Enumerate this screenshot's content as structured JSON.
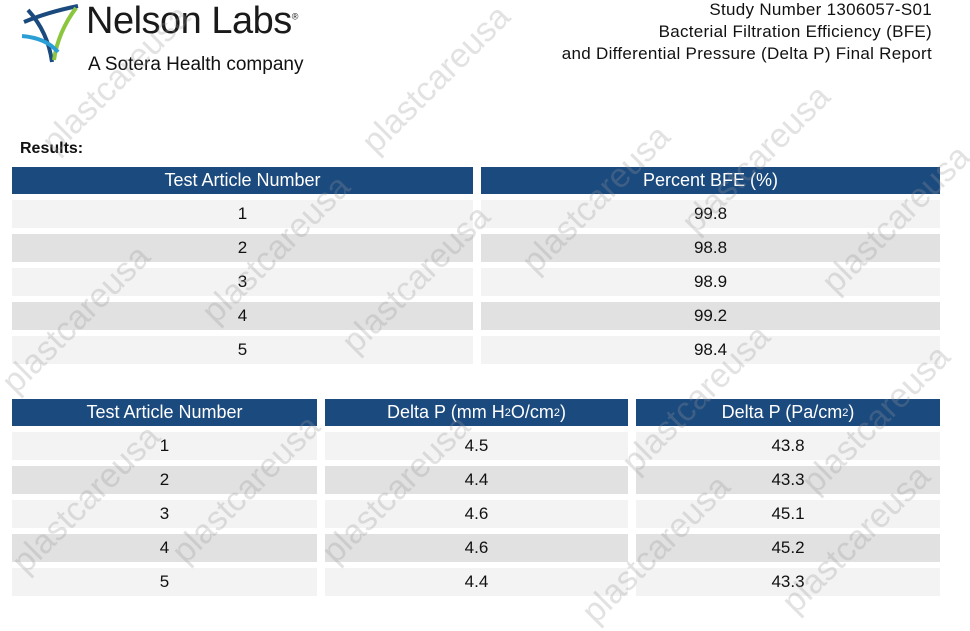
{
  "header": {
    "logo_name": "Nelson Labs",
    "logo_mark": "®",
    "logo_tagline": "A Sotera Health company",
    "study_number": "Study Number 1306057-S01",
    "report_line1": "Bacterial Filtration Efficiency (BFE)",
    "report_line2": "and Differential Pressure (Delta P) Final Report"
  },
  "section_title": "Results:",
  "table_bfe": {
    "columns": [
      "Test Article Number",
      "Percent BFE (%)"
    ],
    "rows": [
      [
        "1",
        "99.8"
      ],
      [
        "2",
        "98.8"
      ],
      [
        "3",
        "98.9"
      ],
      [
        "4",
        "99.2"
      ],
      [
        "5",
        "98.4"
      ]
    ]
  },
  "table_delta_p": {
    "columns": [
      [
        "Test Article Number"
      ],
      [
        "Delta P (mm H",
        "2",
        "O/cm",
        "2",
        ")"
      ],
      [
        "Delta P (Pa/cm",
        "2",
        ")"
      ]
    ],
    "rows": [
      [
        "1",
        "4.5",
        "43.8"
      ],
      [
        "2",
        "4.4",
        "43.3"
      ],
      [
        "3",
        "4.6",
        "45.1"
      ],
      [
        "4",
        "4.6",
        "45.2"
      ],
      [
        "5",
        "4.4",
        "43.3"
      ]
    ]
  },
  "watermark": "plastcareusa"
}
